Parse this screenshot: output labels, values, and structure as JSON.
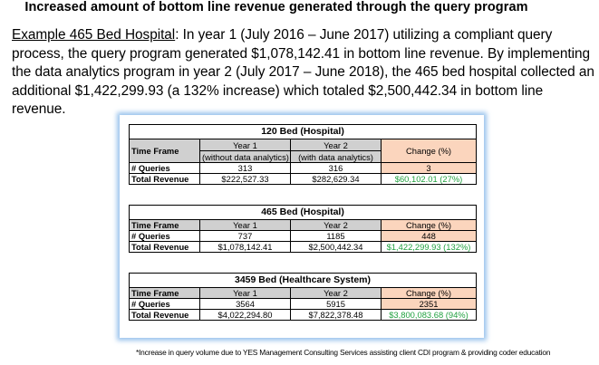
{
  "title": "Increased amount of bottom line revenue generated through the query program",
  "paragraph": {
    "example_label": "Example 465 Bed Hospital",
    "text": ": In year 1 (July 2016 – June 2017) utilizing a compliant query process, the query program generated $1,078,142.41 in bottom line revenue.  By implementing the data analytics program in year 2 (July 2017 – June 2018), the 465 bed hospital collected an additional $1,422,299.93 (a 132% increase) which totaled $2,500,442.34 in bottom line revenue."
  },
  "tables": [
    {
      "caption": "120 Bed (Hospital)",
      "time_frame_label": "Time Frame",
      "year1": "Year 1",
      "year1_sub": "(without data analytics)",
      "year2": "Year 2",
      "year2_sub": "(with data analytics)",
      "change": "Change (%)",
      "queries_label": "# Queries",
      "queries_y1": "313",
      "queries_y2": "316",
      "queries_change": "3",
      "revenue_label": "Total Revenue",
      "revenue_y1": "$222,527.33",
      "revenue_y2": "$282,629.34",
      "revenue_change": "$60,102.01 (27%)"
    },
    {
      "caption": "465 Bed (Hospital)",
      "time_frame_label": "Time Frame",
      "year1": "Year 1",
      "year2": "Year 2",
      "change": "Change (%)",
      "queries_label": "# Queries",
      "queries_y1": "737",
      "queries_y2": "1185",
      "queries_change": "448",
      "revenue_label": "Total Revenue",
      "revenue_y1": "$1,078,142.41",
      "revenue_y2": "$2,500,442.34",
      "revenue_change": "$1,422,299.93 (132%)"
    },
    {
      "caption": "3459 Bed (Healthcare System)",
      "time_frame_label": "Time Frame",
      "year1": "Year 1",
      "year2": "Year 2",
      "change": "Change (%)",
      "queries_label": "# Queries",
      "queries_y1": "3564",
      "queries_y2": "5915",
      "queries_change": "2351",
      "revenue_label": "Total Revenue",
      "revenue_y1": "$4,022,294.80",
      "revenue_y2": "$7,822,378.48",
      "revenue_change": "$3,800,083.68 (94%)"
    }
  ],
  "footnote": "*Increase in query volume due to YES Management Consulting Services assisting client CDI program & providing coder education",
  "colors": {
    "header_gray": "#d0d0d0",
    "change_peach": "#fbd5bd",
    "revenue_green": "#21a140",
    "panel_glow": "#78afe6"
  }
}
